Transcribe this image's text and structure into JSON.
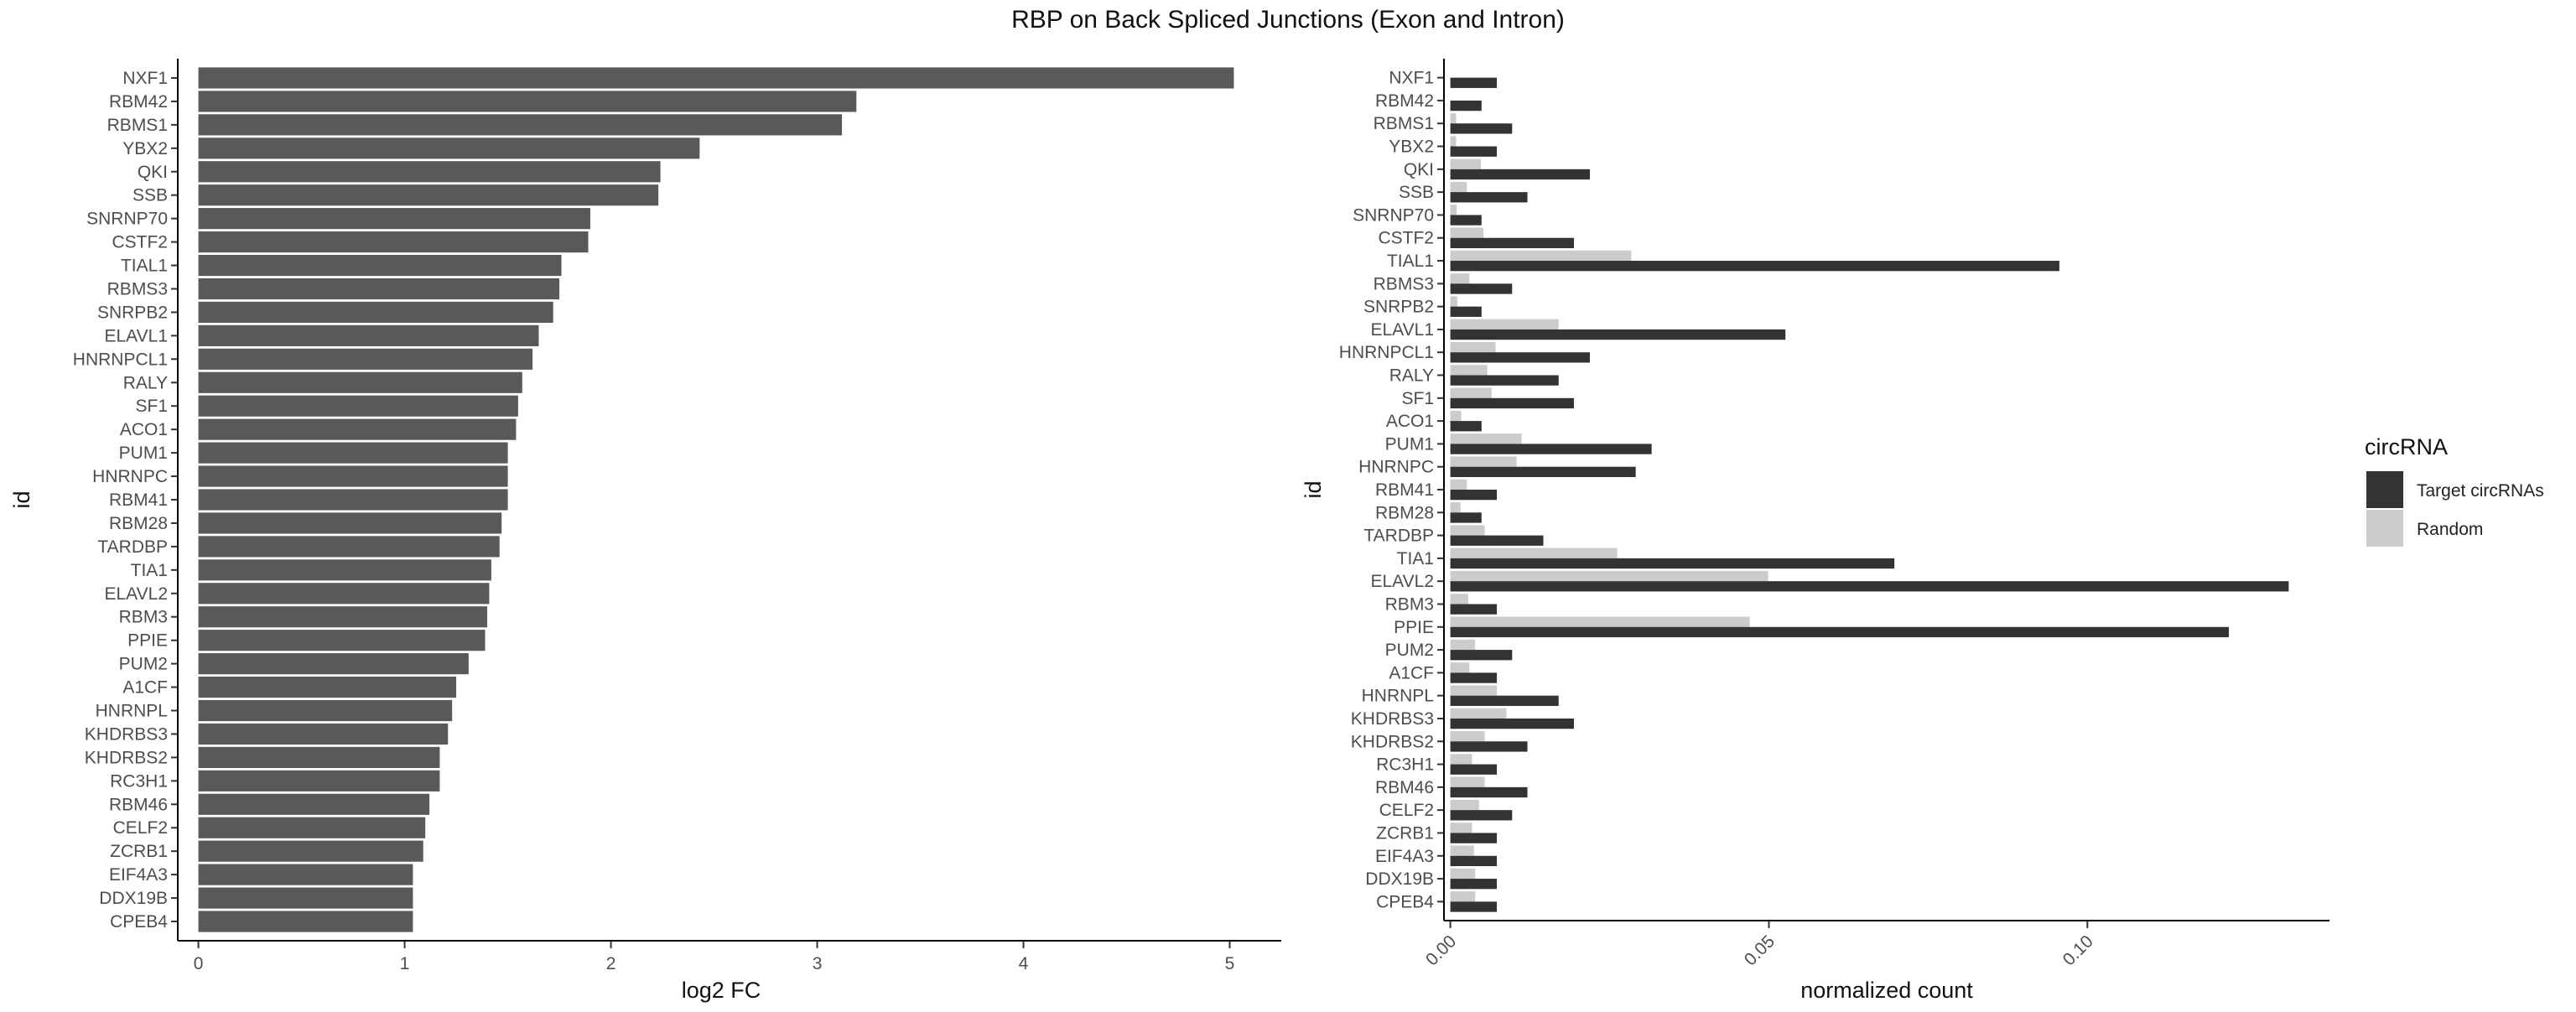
{
  "title": "RBP on Back Spliced Junctions (Exon and Intron)",
  "chart_data": [
    {
      "type": "bar",
      "orientation": "horizontal",
      "xlabel": "log2 FC",
      "ylabel": "id",
      "xlim": [
        -0.1,
        5.25
      ],
      "xticks": [
        0,
        1,
        2,
        3,
        4,
        5
      ],
      "grid": false,
      "bar_color": "#595959",
      "categories": [
        "NXF1",
        "RBM42",
        "RBMS1",
        "YBX2",
        "QKI",
        "SSB",
        "SNRNP70",
        "CSTF2",
        "TIAL1",
        "RBMS3",
        "SNRPB2",
        "ELAVL1",
        "HNRNPCL1",
        "RALY",
        "SF1",
        "ACO1",
        "PUM1",
        "HNRNPC",
        "RBM41",
        "RBM28",
        "TARDBP",
        "TIA1",
        "ELAVL2",
        "RBM3",
        "PPIE",
        "PUM2",
        "A1CF",
        "HNRNPL",
        "KHDRBS3",
        "KHDRBS2",
        "RC3H1",
        "RBM46",
        "CELF2",
        "ZCRB1",
        "EIF4A3",
        "DDX19B",
        "CPEB4"
      ],
      "values": [
        5.02,
        3.19,
        3.12,
        2.43,
        2.24,
        2.23,
        1.9,
        1.89,
        1.76,
        1.75,
        1.72,
        1.65,
        1.62,
        1.57,
        1.55,
        1.54,
        1.5,
        1.5,
        1.5,
        1.47,
        1.46,
        1.42,
        1.41,
        1.4,
        1.39,
        1.31,
        1.25,
        1.23,
        1.21,
        1.17,
        1.17,
        1.12,
        1.1,
        1.09,
        1.04,
        1.04,
        1.04
      ]
    },
    {
      "type": "bar",
      "orientation": "horizontal",
      "xlabel": "normalized count",
      "ylabel": "id",
      "xlim": [
        -0.001,
        0.138
      ],
      "xticks": [
        0.0,
        0.05,
        0.1
      ],
      "xtick_labels": [
        "0.00",
        "0.05",
        "0.10"
      ],
      "grid": false,
      "legend": {
        "title": "circRNA",
        "position": "right"
      },
      "categories": [
        "NXF1",
        "RBM42",
        "RBMS1",
        "YBX2",
        "QKI",
        "SSB",
        "SNRNP70",
        "CSTF2",
        "TIAL1",
        "RBMS3",
        "SNRPB2",
        "ELAVL1",
        "HNRNPCL1",
        "RALY",
        "SF1",
        "ACO1",
        "PUM1",
        "HNRNPC",
        "RBM41",
        "RBM28",
        "TARDBP",
        "TIA1",
        "ELAVL2",
        "RBM3",
        "PPIE",
        "PUM2",
        "A1CF",
        "HNRNPL",
        "KHDRBS3",
        "KHDRBS2",
        "RC3H1",
        "RBM46",
        "CELF2",
        "ZCRB1",
        "EIF4A3",
        "DDX19B",
        "CPEB4"
      ],
      "series": [
        {
          "name": "Target circRNAs",
          "color": "#333333",
          "values": [
            0.0073,
            0.0049,
            0.0097,
            0.0073,
            0.0219,
            0.0121,
            0.0049,
            0.0194,
            0.0956,
            0.0097,
            0.0049,
            0.0526,
            0.0219,
            0.017,
            0.0194,
            0.0049,
            0.0316,
            0.0291,
            0.0073,
            0.0049,
            0.0146,
            0.0697,
            0.1316,
            0.0073,
            0.1222,
            0.0097,
            0.0073,
            0.017,
            0.0194,
            0.0121,
            0.0073,
            0.0121,
            0.0097,
            0.0073,
            0.0073,
            0.0073,
            0.0073
          ]
        },
        {
          "name": "Random",
          "color": "#cccccc",
          "values": [
            0.0,
            0.0,
            0.0009,
            0.0009,
            0.0048,
            0.0026,
            0.001,
            0.0052,
            0.0284,
            0.003,
            0.0011,
            0.017,
            0.0071,
            0.0058,
            0.0065,
            0.0017,
            0.0112,
            0.0104,
            0.0026,
            0.0016,
            0.0054,
            0.0262,
            0.0499,
            0.0028,
            0.047,
            0.0039,
            0.003,
            0.0073,
            0.0088,
            0.0054,
            0.0034,
            0.0054,
            0.0045,
            0.0034,
            0.0037,
            0.0039,
            0.0039
          ]
        }
      ]
    }
  ]
}
